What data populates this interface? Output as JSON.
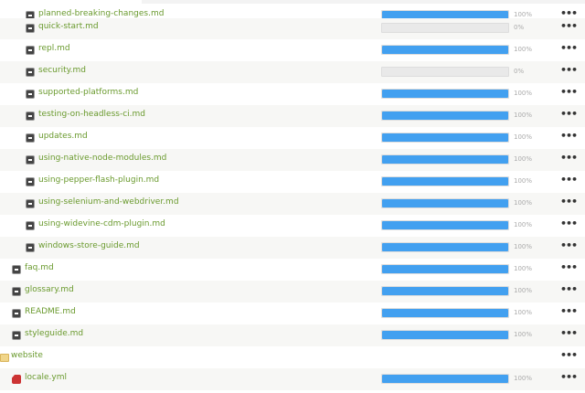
{
  "rows": [
    {
      "name": "planned-breaking-changes.md",
      "type": "md",
      "level": 2,
      "progress": 100,
      "label": "100%"
    },
    {
      "name": "quick-start.md",
      "type": "md",
      "level": 2,
      "progress": 0,
      "label": "0%"
    },
    {
      "name": "repl.md",
      "type": "md",
      "level": 2,
      "progress": 100,
      "label": "100%"
    },
    {
      "name": "security.md",
      "type": "md",
      "level": 2,
      "progress": 0,
      "label": "0%"
    },
    {
      "name": "supported-platforms.md",
      "type": "md",
      "level": 2,
      "progress": 100,
      "label": "100%"
    },
    {
      "name": "testing-on-headless-ci.md",
      "type": "md",
      "level": 2,
      "progress": 100,
      "label": "100%"
    },
    {
      "name": "updates.md",
      "type": "md",
      "level": 2,
      "progress": 100,
      "label": "100%"
    },
    {
      "name": "using-native-node-modules.md",
      "type": "md",
      "level": 2,
      "progress": 100,
      "label": "100%"
    },
    {
      "name": "using-pepper-flash-plugin.md",
      "type": "md",
      "level": 2,
      "progress": 100,
      "label": "100%"
    },
    {
      "name": "using-selenium-and-webdriver.md",
      "type": "md",
      "level": 2,
      "progress": 100,
      "label": "100%"
    },
    {
      "name": "using-widevine-cdm-plugin.md",
      "type": "md",
      "level": 2,
      "progress": 100,
      "label": "100%"
    },
    {
      "name": "windows-store-guide.md",
      "type": "md",
      "level": 2,
      "progress": 100,
      "label": "100%"
    },
    {
      "name": "faq.md",
      "type": "md",
      "level": 1,
      "progress": 100,
      "label": "100%"
    },
    {
      "name": "glossary.md",
      "type": "md",
      "level": 1,
      "progress": 100,
      "label": "100%"
    },
    {
      "name": "README.md",
      "type": "md",
      "level": 1,
      "progress": 100,
      "label": "100%"
    },
    {
      "name": "styleguide.md",
      "type": "md",
      "level": 1,
      "progress": 100,
      "label": "100%"
    },
    {
      "name": "website",
      "type": "folder",
      "level": 0,
      "progress": null,
      "label": null
    },
    {
      "name": "locale.yml",
      "type": "yml",
      "level": 1,
      "progress": 100,
      "label": "100%"
    }
  ],
  "menu_glyph": "•••",
  "colors": {
    "link": "#6a9a2e",
    "bar": "#42a0f0"
  }
}
